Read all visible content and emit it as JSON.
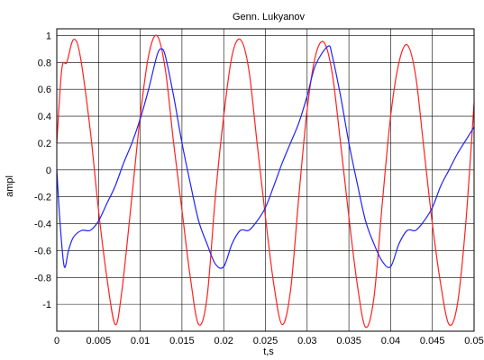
{
  "chart_data": {
    "type": "line",
    "title": "Genn. Lukyanov",
    "xlabel": "t,s",
    "ylabel": "ampl",
    "xlim": [
      0,
      0.05
    ],
    "ylim": [
      -1.2,
      1.05
    ],
    "grid": true,
    "x_ticks": [
      0,
      0.005,
      0.01,
      0.015,
      0.02,
      0.025,
      0.03,
      0.035,
      0.04,
      0.045,
      0.05
    ],
    "x_tick_labels": [
      "0",
      "0.005",
      "0.01",
      "0.015",
      "0.02",
      "0.025",
      "0.03",
      "0.035",
      "0.04",
      "0.045",
      "0.05"
    ],
    "y_ticks": [
      1,
      0.8,
      0.6,
      0.4,
      0.2,
      0,
      -0.2,
      -0.4,
      -0.6,
      -0.8,
      -1
    ],
    "y_tick_labels": [
      "1",
      "0.8",
      "0.6",
      "0.4",
      "0.2",
      "0",
      "-0.2",
      "-0.4",
      "-0.6",
      "-0.8",
      "-1"
    ],
    "series": [
      {
        "color": "#ff2020",
        "points": [
          [
            0,
            0.2
          ],
          [
            0.0006,
            0.75
          ],
          [
            0.0012,
            0.8
          ],
          [
            0.002,
            0.97
          ],
          [
            0.0028,
            0.85
          ],
          [
            0.004,
            0.3
          ],
          [
            0.005,
            -0.3
          ],
          [
            0.006,
            -0.8
          ],
          [
            0.007,
            -1.15
          ],
          [
            0.0078,
            -0.9
          ],
          [
            0.009,
            -0.2
          ],
          [
            0.01,
            0.4
          ],
          [
            0.011,
            0.85
          ],
          [
            0.012,
            1.0
          ],
          [
            0.013,
            0.75
          ],
          [
            0.014,
            0.2
          ],
          [
            0.015,
            -0.3
          ],
          [
            0.016,
            -0.8
          ],
          [
            0.017,
            -1.15
          ],
          [
            0.018,
            -0.95
          ],
          [
            0.019,
            -0.2
          ],
          [
            0.02,
            0.4
          ],
          [
            0.021,
            0.85
          ],
          [
            0.022,
            0.97
          ],
          [
            0.023,
            0.75
          ],
          [
            0.024,
            0.2
          ],
          [
            0.025,
            -0.35
          ],
          [
            0.026,
            -0.85
          ],
          [
            0.027,
            -1.15
          ],
          [
            0.028,
            -0.9
          ],
          [
            0.029,
            -0.2
          ],
          [
            0.03,
            0.45
          ],
          [
            0.031,
            0.85
          ],
          [
            0.032,
            0.95
          ],
          [
            0.033,
            0.72
          ],
          [
            0.034,
            0.2
          ],
          [
            0.035,
            -0.35
          ],
          [
            0.036,
            -0.85
          ],
          [
            0.037,
            -1.17
          ],
          [
            0.038,
            -0.95
          ],
          [
            0.039,
            -0.25
          ],
          [
            0.04,
            0.4
          ],
          [
            0.041,
            0.8
          ],
          [
            0.042,
            0.93
          ],
          [
            0.043,
            0.7
          ],
          [
            0.044,
            0.15
          ],
          [
            0.045,
            -0.4
          ],
          [
            0.046,
            -0.85
          ],
          [
            0.047,
            -1.15
          ],
          [
            0.048,
            -1.0
          ],
          [
            0.049,
            -0.4
          ],
          [
            0.05,
            0.5
          ]
        ]
      },
      {
        "color": "#2020ff",
        "points": [
          [
            0,
            0.0
          ],
          [
            0.0004,
            -0.4
          ],
          [
            0.0009,
            -0.72
          ],
          [
            0.0014,
            -0.6
          ],
          [
            0.002,
            -0.5
          ],
          [
            0.003,
            -0.45
          ],
          [
            0.004,
            -0.45
          ],
          [
            0.005,
            -0.38
          ],
          [
            0.006,
            -0.25
          ],
          [
            0.007,
            -0.12
          ],
          [
            0.008,
            0.05
          ],
          [
            0.009,
            0.2
          ],
          [
            0.01,
            0.38
          ],
          [
            0.011,
            0.6
          ],
          [
            0.012,
            0.85
          ],
          [
            0.0125,
            0.9
          ],
          [
            0.013,
            0.85
          ],
          [
            0.014,
            0.55
          ],
          [
            0.015,
            0.2
          ],
          [
            0.016,
            -0.1
          ],
          [
            0.017,
            -0.38
          ],
          [
            0.018,
            -0.55
          ],
          [
            0.019,
            -0.7
          ],
          [
            0.02,
            -0.72
          ],
          [
            0.021,
            -0.55
          ],
          [
            0.022,
            -0.45
          ],
          [
            0.023,
            -0.45
          ],
          [
            0.024,
            -0.38
          ],
          [
            0.025,
            -0.28
          ],
          [
            0.026,
            -0.12
          ],
          [
            0.027,
            0.05
          ],
          [
            0.028,
            0.2
          ],
          [
            0.029,
            0.35
          ],
          [
            0.03,
            0.55
          ],
          [
            0.031,
            0.78
          ],
          [
            0.0325,
            0.92
          ],
          [
            0.033,
            0.85
          ],
          [
            0.034,
            0.55
          ],
          [
            0.035,
            0.2
          ],
          [
            0.036,
            -0.1
          ],
          [
            0.037,
            -0.38
          ],
          [
            0.038,
            -0.55
          ],
          [
            0.039,
            -0.68
          ],
          [
            0.04,
            -0.72
          ],
          [
            0.041,
            -0.55
          ],
          [
            0.042,
            -0.45
          ],
          [
            0.043,
            -0.45
          ],
          [
            0.044,
            -0.38
          ],
          [
            0.045,
            -0.28
          ],
          [
            0.046,
            -0.12
          ],
          [
            0.047,
            0.0
          ],
          [
            0.048,
            0.12
          ],
          [
            0.049,
            0.22
          ],
          [
            0.05,
            0.32
          ]
        ]
      }
    ]
  }
}
